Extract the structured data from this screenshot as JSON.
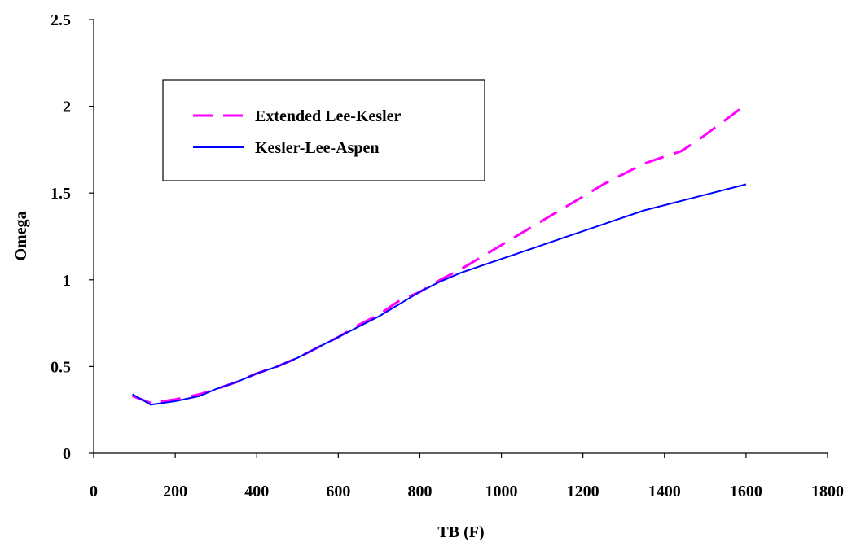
{
  "chart_data": {
    "type": "line",
    "title": "",
    "xlabel": "TB (F)",
    "ylabel": "Omega",
    "xlim": [
      0,
      1800
    ],
    "ylim": [
      0,
      2.5
    ],
    "xticks": [
      0,
      200,
      400,
      600,
      800,
      1000,
      1200,
      1400,
      1600,
      1800
    ],
    "yticks": [
      0,
      0.5,
      1,
      1.5,
      2,
      2.5
    ],
    "ytick_labels": [
      "0",
      "0.5",
      "1",
      "1.5",
      "2",
      "2.5"
    ],
    "grid": false,
    "legend_position": "top-left",
    "series": [
      {
        "name": "Extended Lee-Kesler",
        "color": "#ff00ff",
        "style": "dashed",
        "x": [
          95,
          140,
          200,
          260,
          300,
          350,
          400,
          450,
          500,
          550,
          600,
          650,
          700,
          750,
          800,
          850,
          900,
          950,
          1000,
          1050,
          1100,
          1150,
          1200,
          1250,
          1300,
          1350,
          1400,
          1440,
          1480,
          1520,
          1560,
          1600
        ],
        "y": [
          0.33,
          0.29,
          0.31,
          0.34,
          0.37,
          0.41,
          0.46,
          0.5,
          0.55,
          0.61,
          0.67,
          0.74,
          0.8,
          0.88,
          0.93,
          1.0,
          1.06,
          1.13,
          1.2,
          1.27,
          1.34,
          1.41,
          1.48,
          1.55,
          1.61,
          1.67,
          1.71,
          1.74,
          1.8,
          1.87,
          1.94,
          2.01
        ]
      },
      {
        "name": "Kesler-Lee-Aspen",
        "color": "#0000ff",
        "style": "solid",
        "x": [
          95,
          140,
          200,
          260,
          300,
          350,
          400,
          450,
          500,
          550,
          600,
          650,
          700,
          750,
          800,
          850,
          900,
          950,
          1000,
          1050,
          1100,
          1150,
          1200,
          1250,
          1300,
          1350,
          1400,
          1450,
          1500,
          1550,
          1600
        ],
        "y": [
          0.34,
          0.28,
          0.3,
          0.33,
          0.37,
          0.41,
          0.46,
          0.5,
          0.55,
          0.61,
          0.67,
          0.73,
          0.79,
          0.86,
          0.93,
          0.99,
          1.04,
          1.08,
          1.12,
          1.16,
          1.2,
          1.24,
          1.28,
          1.32,
          1.36,
          1.4,
          1.43,
          1.46,
          1.49,
          1.52,
          1.55
        ]
      }
    ]
  }
}
